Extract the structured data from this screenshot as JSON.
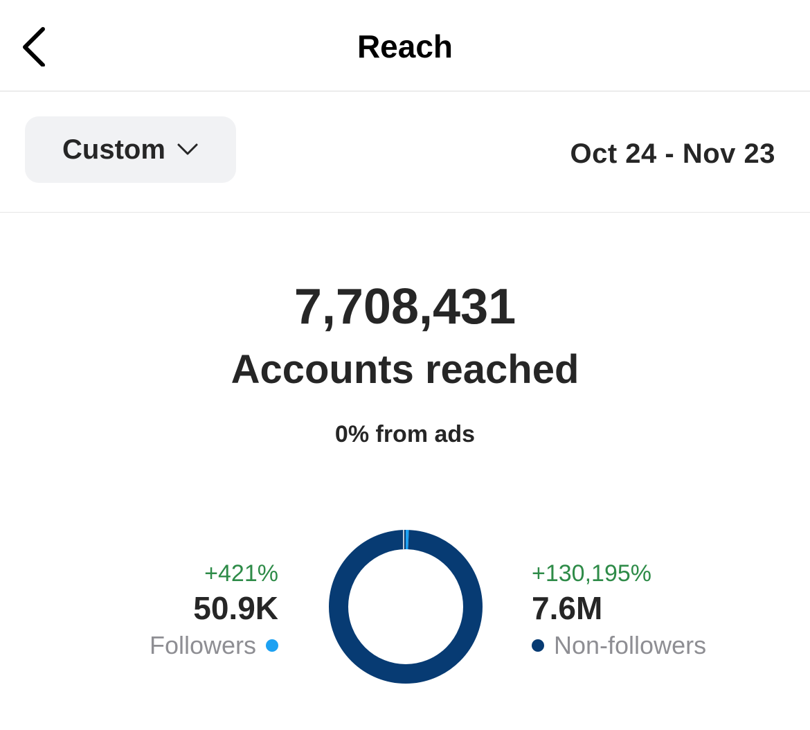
{
  "header": {
    "title": "Reach",
    "back_icon": "chevron-left-icon"
  },
  "filter": {
    "range_label": "Custom",
    "dropdown_icon": "chevron-down-icon",
    "date_range": "Oct 24 - Nov 23"
  },
  "summary": {
    "total": "7,708,431",
    "label": "Accounts reached",
    "ads_note": "0% from ads"
  },
  "followers": {
    "change": "+421%",
    "value": "50.9K",
    "label": "Followers",
    "color": "#1da1f2"
  },
  "non_followers": {
    "change": "+130,195%",
    "value": "7.6M",
    "label": "Non-followers",
    "color": "#073b73"
  },
  "chart_data": {
    "type": "pie",
    "categories": [
      "Followers",
      "Non-followers"
    ],
    "values": [
      50900,
      7600000
    ]
  }
}
